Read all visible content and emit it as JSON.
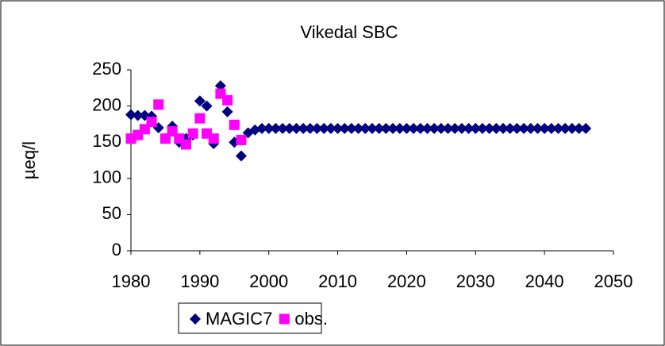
{
  "chart_data": {
    "type": "scatter",
    "title": "Vikedal SBC",
    "ylabel": "µeq/l",
    "xlim": [
      1980,
      2050
    ],
    "xticks": [
      1980,
      1990,
      2000,
      2010,
      2020,
      2030,
      2040,
      2050
    ],
    "ylim": [
      0,
      250
    ],
    "yticks": [
      0,
      50,
      100,
      150,
      200,
      250
    ],
    "grid": false,
    "legend": "bottom",
    "series": [
      {
        "name": "MAGIC7",
        "color": "#000080",
        "marker": "diamond",
        "x": [
          1980,
          1981,
          1982,
          1983,
          1984,
          1985,
          1986,
          1987,
          1988,
          1989,
          1990,
          1991,
          1992,
          1993,
          1994,
          1995,
          1996,
          1997,
          1998,
          1999,
          2000,
          2001,
          2002,
          2003,
          2004,
          2005,
          2006,
          2007,
          2008,
          2009,
          2010,
          2011,
          2012,
          2013,
          2014,
          2015,
          2016,
          2017,
          2018,
          2019,
          2020,
          2021,
          2022,
          2023,
          2024,
          2025,
          2026,
          2027,
          2028,
          2029,
          2030,
          2031,
          2032,
          2033,
          2034,
          2035,
          2036,
          2037,
          2038,
          2039,
          2040,
          2041,
          2042,
          2043,
          2044,
          2045,
          2046
        ],
        "values": [
          188,
          187,
          187,
          186,
          170,
          155,
          172,
          150,
          155,
          160,
          207,
          200,
          148,
          228,
          192,
          150,
          131,
          163,
          167,
          169,
          169,
          169,
          169,
          169,
          169,
          169,
          169,
          169,
          169,
          169,
          169,
          169,
          169,
          169,
          169,
          169,
          169,
          169,
          169,
          169,
          169,
          169,
          169,
          169,
          169,
          169,
          169,
          169,
          169,
          169,
          169,
          169,
          169,
          169,
          169,
          169,
          169,
          169,
          169,
          169,
          169,
          169,
          169,
          169,
          169,
          169,
          169
        ]
      },
      {
        "name": "obs.",
        "color": "#ff00ff",
        "marker": "square",
        "x": [
          1980,
          1981,
          1982,
          1983,
          1984,
          1985,
          1986,
          1987,
          1988,
          1989,
          1990,
          1991,
          1992,
          1993,
          1994,
          1995,
          1996
        ],
        "values": [
          155,
          160,
          168,
          178,
          202,
          155,
          165,
          155,
          147,
          162,
          183,
          162,
          155,
          217,
          208,
          174,
          153
        ]
      }
    ]
  }
}
